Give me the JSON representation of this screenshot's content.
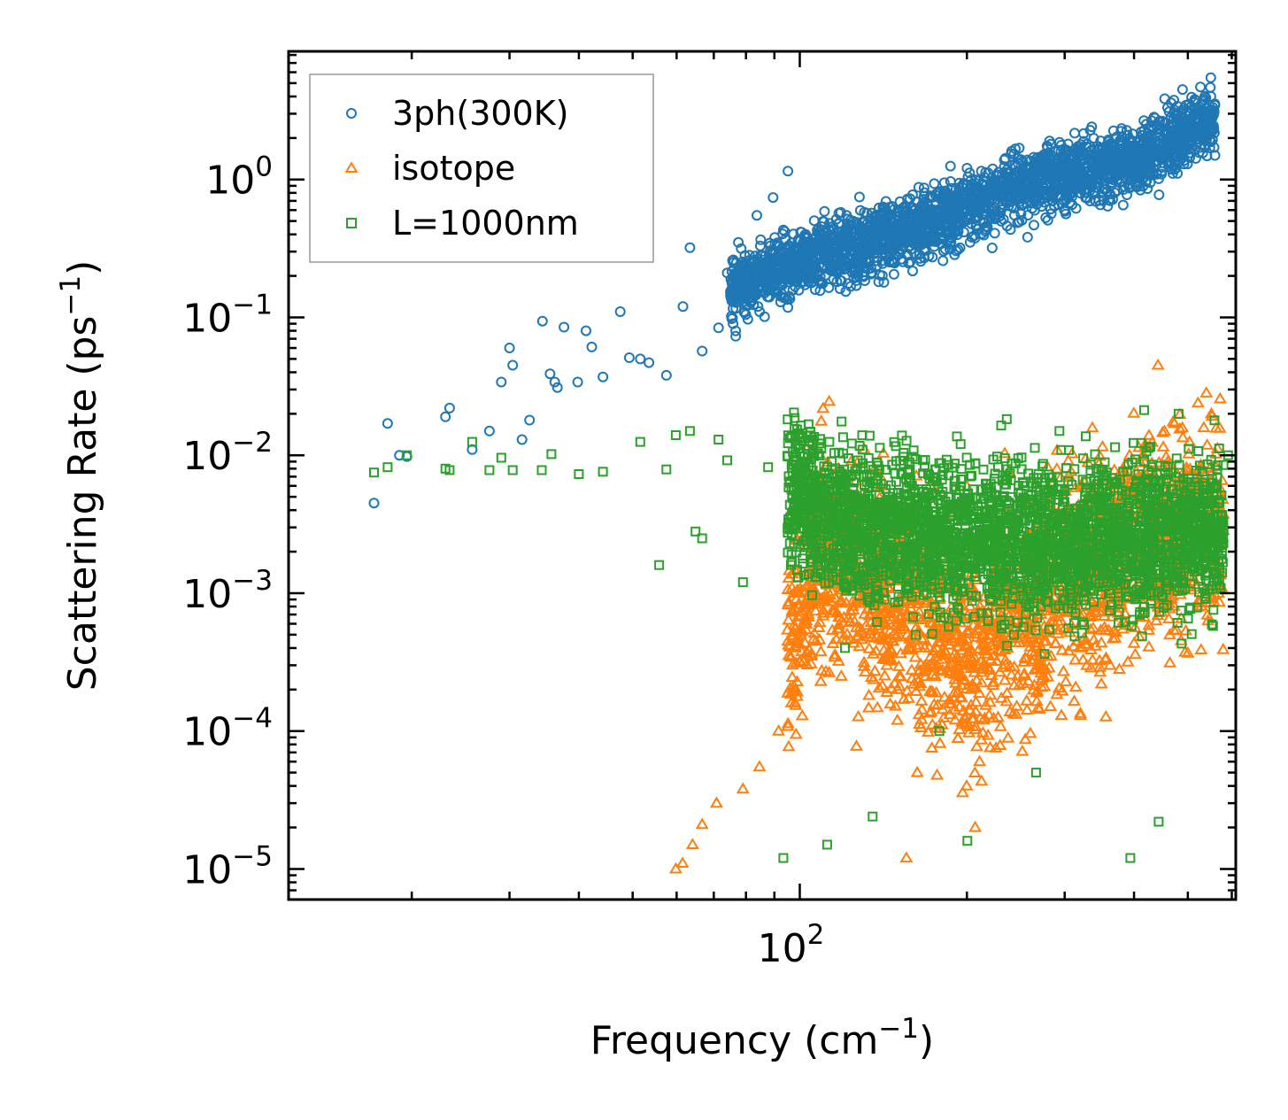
{
  "chart_data": {
    "type": "scatter",
    "title": "",
    "xlabel": {
      "base": "Frequency (cm",
      "sup": "−1",
      "tail": ")"
    },
    "ylabel": {
      "base": "Scattering Rate (ps",
      "sup": "−1",
      "tail": ")"
    },
    "xscale": "log",
    "yscale": "log",
    "xlim": [
      12,
      610
    ],
    "ylim": [
      6e-06,
      8.5
    ],
    "x_ticks": [
      {
        "value": 100,
        "base": "10",
        "exp": "2"
      }
    ],
    "y_ticks": [
      {
        "value": 1,
        "base": "10",
        "exp": "0"
      },
      {
        "value": 0.1,
        "base": "10",
        "exp": "−1"
      },
      {
        "value": 0.01,
        "base": "10",
        "exp": "−2"
      },
      {
        "value": 0.001,
        "base": "10",
        "exp": "−3"
      },
      {
        "value": 0.0001,
        "base": "10",
        "exp": "−4"
      },
      {
        "value": 1e-05,
        "base": "10",
        "exp": "−5"
      }
    ],
    "legend_position": "top-left",
    "series": [
      {
        "name": "3ph(300K)",
        "marker": "circle",
        "color": "#1f77b4",
        "trend": {
          "x": [
            17,
            40,
            60,
            95,
            150,
            250,
            400,
            550
          ],
          "y": [
            0.0045,
            0.04,
            0.1,
            0.25,
            0.4,
            0.9,
            1.4,
            2.8
          ]
        },
        "x": [
          17.1,
          18.1,
          19.0,
          19.6,
          23.0,
          23.4,
          25.7,
          27.6,
          29.0,
          30.0,
          30.4,
          31.6,
          32.6,
          34.4,
          35.5,
          36.2,
          36.6,
          37.6,
          39.8,
          41.2,
          42.2,
          44.2,
          47.5,
          49.3,
          51.6,
          53.5,
          57.5,
          61.6,
          63.4,
          66.7,
          71.4,
          74.0,
          77.5,
          83.7,
          89.5,
          93.4,
          95.2
        ],
        "y": [
          0.0045,
          0.017,
          0.01,
          0.0098,
          0.019,
          0.022,
          0.011,
          0.015,
          0.034,
          0.06,
          0.045,
          0.013,
          0.018,
          0.094,
          0.039,
          0.034,
          0.031,
          0.085,
          0.034,
          0.08,
          0.061,
          0.037,
          0.11,
          0.051,
          0.05,
          0.047,
          0.038,
          0.12,
          0.32,
          0.057,
          0.084,
          0.21,
          0.35,
          0.55,
          0.74,
          0.43,
          1.15
        ]
      },
      {
        "name": "isotope",
        "marker": "triangle",
        "color": "#ff7f0e",
        "trend": {
          "x": [
            60,
            75,
            90,
            110,
            150,
            200,
            300,
            400,
            550
          ],
          "y": [
            1e-05,
            4e-05,
            0.0003,
            0.002,
            0.0008,
            0.0004,
            0.0012,
            0.0025,
            0.003
          ]
        },
        "x": [
          59.8,
          61.5,
          64.1,
          66.7,
          70.8,
          79.0,
          84.6,
          91.6,
          96.6,
          105.0,
          113.8,
          121.9,
          130.8,
          136.4,
          143.0,
          151.0,
          155.6,
          162.8,
          171.2,
          178.4,
          193.2,
          207.0,
          214.3,
          223.7,
          237.9,
          249.9,
          257.6,
          269.8,
          301.0,
          322.3,
          347.6,
          368.8,
          392.7,
          411.8,
          441.8,
          472.9,
          524.6,
          551.4,
          575.4
        ],
        "y": [
          1e-05,
          1.1e-05,
          1.5e-05,
          2.1e-05,
          3e-05,
          3.8e-05,
          5.5e-05,
          0.0001,
          0.00016,
          0.00035,
          0.0013,
          0.0055,
          0.011,
          0.008,
          0.0045,
          0.00025,
          1.2e-05,
          5e-05,
          0.0004,
          0.0009,
          0.0003,
          2e-05,
          0.00012,
          0.00035,
          0.001,
          0.0015,
          0.0015,
          0.003,
          0.0055,
          0.006,
          0.0042,
          0.0078,
          0.01,
          0.0045,
          0.045,
          0.017,
          0.008,
          0.02,
          0.0011
        ]
      },
      {
        "name": "L=1000nm",
        "marker": "square",
        "color": "#2ca02c",
        "trend": {
          "x": [
            17,
            40,
            70,
            95,
            120,
            150,
            200,
            300,
            400,
            550
          ],
          "y": [
            0.0075,
            0.0075,
            0.0075,
            0.006,
            0.003,
            0.003,
            0.0025,
            0.0025,
            0.0025,
            0.003
          ]
        },
        "x": [
          17.1,
          18.1,
          19.6,
          23.0,
          23.4,
          25.7,
          27.6,
          29.0,
          30.4,
          34.3,
          35.7,
          40.0,
          44.2,
          51.6,
          55.8,
          57.5,
          59.8,
          63.4,
          64.9,
          66.7,
          71.4,
          74.0,
          79.0,
          87.7,
          93.4,
          95.2,
          99.1,
          112.0,
          120.6,
          135.3,
          145.9,
          161.8,
          178.4,
          200.4,
          219.9,
          243.2,
          266.4,
          293.6,
          323.9,
          357.2,
          393.9,
          443.0,
          481.2,
          529.0,
          567.5,
          590.8
        ],
        "y": [
          0.0075,
          0.0082,
          0.01,
          0.008,
          0.0078,
          0.0125,
          0.0078,
          0.0096,
          0.0078,
          0.0078,
          0.0102,
          0.0073,
          0.0076,
          0.0125,
          0.0016,
          0.0079,
          0.014,
          0.015,
          0.0028,
          0.0025,
          0.013,
          0.0092,
          0.0012,
          0.0082,
          1.2e-05,
          0.0098,
          0.012,
          1.5e-05,
          0.0004,
          2.4e-05,
          0.003,
          0.0005,
          0.0001,
          1.6e-05,
          0.0045,
          0.0005,
          5e-05,
          0.015,
          0.0095,
          0.0075,
          1.2e-05,
          2.2e-05,
          0.02,
          0.0025,
          0.0045,
          0.01
        ]
      }
    ]
  }
}
